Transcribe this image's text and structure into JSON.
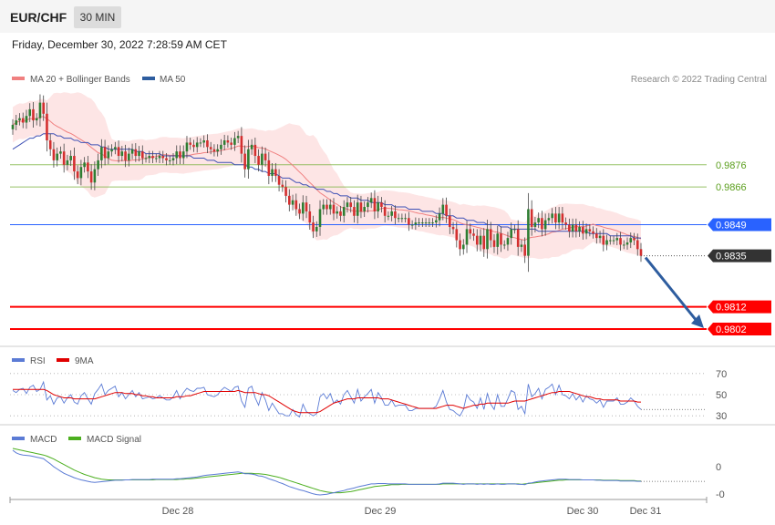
{
  "header": {
    "symbol": "EUR/CHF",
    "timeframe": "30 MIN",
    "datetime": "Friday, December 30, 2022 7:28:59 AM CET"
  },
  "credit": "Research © 2022 Trading Central",
  "colors": {
    "bullish": "#2e7d32",
    "bearish": "#d32f2f",
    "resistance": "#7cb342",
    "pivot": "#2962ff",
    "support": "#ff0000",
    "current": "#333333",
    "ma20": "#f08080",
    "ma50": "#3f51b5",
    "bollinger": "#fde0e0",
    "rsi": "#5b7bd5",
    "rsi_ma": "#e00000",
    "macd": "#5b7bd5",
    "macd_signal": "#4caf1f",
    "arrow": "#2e5d9f"
  },
  "chart_data": [
    {
      "type": "candlestick",
      "panel": "price",
      "legend": [
        "MA 20 + Bollinger Bands",
        "MA 50"
      ],
      "x_tick_labels": [
        "Dec 28",
        "Dec 29",
        "Dec 30",
        "Dec 31"
      ],
      "x_ticks_index": [
        43,
        100,
        157,
        175
      ],
      "ylim": [
        0.9795,
        0.991
      ],
      "levels": [
        {
          "value": 0.9876,
          "label": "0.9876",
          "kind": "resistance"
        },
        {
          "value": 0.9866,
          "label": "0.9866",
          "kind": "resistance"
        },
        {
          "value": 0.9849,
          "label": "0.9849",
          "kind": "pivot"
        },
        {
          "value": 0.9835,
          "label": "0.9835",
          "kind": "current"
        },
        {
          "value": 0.9812,
          "label": "0.9812",
          "kind": "support"
        },
        {
          "value": 0.9802,
          "label": "0.9802",
          "kind": "support"
        }
      ],
      "close": [
        0.9894,
        0.9896,
        0.9897,
        0.9895,
        0.9898,
        0.9901,
        0.9896,
        0.9897,
        0.9904,
        0.9899,
        0.9887,
        0.9883,
        0.9878,
        0.9881,
        0.9882,
        0.9876,
        0.9878,
        0.988,
        0.9873,
        0.987,
        0.9875,
        0.9877,
        0.9873,
        0.9868,
        0.9874,
        0.9878,
        0.9884,
        0.9879,
        0.9882,
        0.9883,
        0.9884,
        0.988,
        0.9882,
        0.9878,
        0.9881,
        0.9883,
        0.988,
        0.9882,
        0.9879,
        0.9879,
        0.988,
        0.9879,
        0.9879,
        0.988,
        0.9879,
        0.9878,
        0.9878,
        0.9879,
        0.9882,
        0.9879,
        0.9882,
        0.9886,
        0.9885,
        0.9884,
        0.9886,
        0.9886,
        0.9887,
        0.9884,
        0.9883,
        0.9882,
        0.9883,
        0.9885,
        0.9887,
        0.9886,
        0.9885,
        0.9888,
        0.9889,
        0.9881,
        0.9874,
        0.9883,
        0.9885,
        0.988,
        0.9876,
        0.9881,
        0.9878,
        0.9871,
        0.9874,
        0.9871,
        0.9867,
        0.9866,
        0.9862,
        0.9858,
        0.986,
        0.9856,
        0.9854,
        0.9859,
        0.9855,
        0.985,
        0.9846,
        0.9848,
        0.9856,
        0.9858,
        0.9856,
        0.9858,
        0.9854,
        0.9855,
        0.9853,
        0.9857,
        0.9859,
        0.9857,
        0.9853,
        0.9859,
        0.9855,
        0.9857,
        0.9859,
        0.9861,
        0.9855,
        0.9859,
        0.9857,
        0.9853,
        0.9853,
        0.9855,
        0.9852,
        0.9852,
        0.9852,
        0.9852,
        0.9849,
        0.9849,
        0.985,
        0.985,
        0.985,
        0.985,
        0.985,
        0.985,
        0.9851,
        0.9854,
        0.9858,
        0.9853,
        0.9848,
        0.9847,
        0.9842,
        0.9838,
        0.984,
        0.9847,
        0.9845,
        0.9844,
        0.984,
        0.9844,
        0.9838,
        0.9847,
        0.9842,
        0.9839,
        0.9845,
        0.984,
        0.984,
        0.9843,
        0.9847,
        0.9847,
        0.9839,
        0.984,
        0.9835,
        0.9856,
        0.9848,
        0.985,
        0.9852,
        0.9847,
        0.9851,
        0.9852,
        0.9854,
        0.985,
        0.9854,
        0.985,
        0.9849,
        0.9846,
        0.9849,
        0.9846,
        0.9848,
        0.9845,
        0.9847,
        0.9846,
        0.9845,
        0.9843,
        0.9844,
        0.984,
        0.9842,
        0.9842,
        0.9842,
        0.9843,
        0.984,
        0.984,
        0.9841,
        0.9843,
        0.9842,
        0.9838,
        0.9835
      ],
      "ma50": [
        0.9883,
        0.9884,
        0.9885,
        0.9886,
        0.9887,
        0.9888,
        0.9888,
        0.9889,
        0.9889,
        0.989,
        0.989,
        0.989,
        0.989,
        0.9889,
        0.9889,
        0.9888,
        0.9888,
        0.9888,
        0.9887,
        0.9887,
        0.9886,
        0.9886,
        0.9886,
        0.9885,
        0.9885,
        0.9885,
        0.9884,
        0.9884,
        0.9883,
        0.9883,
        0.9883,
        0.9883,
        0.9883,
        0.9883,
        0.9883,
        0.9883,
        0.9882,
        0.9882,
        0.9882,
        0.9881,
        0.9881,
        0.9881,
        0.9881,
        0.9881,
        0.988,
        0.988,
        0.988,
        0.988,
        0.988,
        0.988,
        0.988,
        0.988,
        0.988,
        0.9879,
        0.9879,
        0.9879,
        0.9879,
        0.9878,
        0.9878,
        0.9878,
        0.9877,
        0.9877,
        0.9877,
        0.9877,
        0.9877,
        0.9876,
        0.9876,
        0.9876,
        0.9876,
        0.9875,
        0.9875,
        0.9874,
        0.9874,
        0.9873,
        0.9873,
        0.9872,
        0.9872,
        0.9872,
        0.9871,
        0.987,
        0.987,
        0.987,
        0.9869,
        0.9868,
        0.9868,
        0.9867,
        0.9867,
        0.9866,
        0.9866,
        0.9865,
        0.9865,
        0.9865,
        0.9864,
        0.9864,
        0.9863,
        0.9863,
        0.9862,
        0.9862,
        0.9862,
        0.9861,
        0.9861,
        0.9861,
        0.986,
        0.986,
        0.986,
        0.9859,
        0.9859,
        0.9859,
        0.9859,
        0.9858,
        0.9858,
        0.9858,
        0.9857,
        0.9857,
        0.9857,
        0.9857,
        0.9856,
        0.9856,
        0.9856,
        0.9856,
        0.9855,
        0.9855,
        0.9855,
        0.9855,
        0.9854,
        0.9854,
        0.9854,
        0.9853,
        0.9853,
        0.9853,
        0.9852,
        0.9852,
        0.9852,
        0.9851,
        0.9851,
        0.9851,
        0.985,
        0.985,
        0.985,
        0.9849,
        0.9849,
        0.9849,
        0.9849,
        0.9848,
        0.9848,
        0.9848,
        0.9847,
        0.9847,
        0.9847,
        0.9847,
        0.9847,
        0.9847,
        0.9847,
        0.9847,
        0.9846,
        0.9846,
        0.9846,
        0.9846,
        0.9846,
        0.9846,
        0.9846,
        0.9846,
        0.9846,
        0.9846,
        0.9846,
        0.9846,
        0.9846,
        0.9846,
        0.9846,
        0.9845,
        0.9845,
        0.9845,
        0.9845,
        0.9845,
        0.9845,
        0.9844,
        0.9844,
        0.9844,
        0.9844,
        0.9844,
        0.9844,
        0.9844,
        0.9843,
        0.9843,
        0.9843
      ]
    },
    {
      "type": "line",
      "panel": "rsi",
      "legend": [
        "RSI",
        "9MA"
      ],
      "y_ticks": [
        70,
        50,
        30
      ],
      "ylim": [
        25,
        75
      ],
      "rsi": [
        54,
        52,
        55,
        56,
        51,
        57,
        59,
        53,
        55,
        62,
        45,
        49,
        41,
        47,
        48,
        42,
        47,
        50,
        43,
        41,
        49,
        52,
        46,
        41,
        51,
        55,
        60,
        50,
        54,
        56,
        58,
        48,
        52,
        46,
        50,
        54,
        48,
        52,
        46,
        47,
        48,
        46,
        47,
        49,
        47,
        45,
        45,
        48,
        54,
        46,
        52,
        56,
        54,
        53,
        56,
        56,
        57,
        50,
        49,
        48,
        50,
        54,
        57,
        55,
        53,
        57,
        58,
        44,
        38,
        56,
        58,
        47,
        40,
        52,
        45,
        35,
        42,
        37,
        32,
        32,
        30,
        30,
        36,
        31,
        29,
        41,
        34,
        32,
        30,
        32,
        48,
        51,
        46,
        51,
        42,
        45,
        41,
        50,
        54,
        48,
        42,
        55,
        44,
        48,
        51,
        55,
        42,
        52,
        47,
        40,
        40,
        45,
        39,
        40,
        40,
        40,
        35,
        35,
        37,
        37,
        37,
        37,
        37,
        37,
        39,
        46,
        54,
        43,
        36,
        35,
        32,
        30,
        36,
        50,
        45,
        43,
        37,
        47,
        36,
        51,
        41,
        36,
        50,
        39,
        39,
        46,
        54,
        52,
        36,
        39,
        32,
        60,
        48,
        51,
        56,
        46,
        55,
        57,
        60,
        50,
        59,
        50,
        49,
        46,
        51,
        45,
        49,
        43,
        49,
        46,
        45,
        42,
        45,
        38,
        44,
        44,
        44,
        47,
        41,
        41,
        43,
        47,
        44,
        39,
        36
      ],
      "rsi_ma": [
        55,
        55,
        55,
        55,
        55,
        55,
        55,
        55,
        55,
        55,
        54,
        52,
        50,
        49,
        48,
        47,
        47,
        47,
        46,
        46,
        46,
        46,
        46,
        46,
        46,
        47,
        48,
        49,
        50,
        51,
        52,
        52,
        52,
        51,
        51,
        51,
        50,
        50,
        49,
        49,
        48,
        48,
        47,
        47,
        47,
        47,
        47,
        47,
        48,
        48,
        48,
        49,
        49,
        50,
        51,
        52,
        53,
        53,
        53,
        53,
        53,
        53,
        53,
        53,
        53,
        53,
        54,
        53,
        52,
        52,
        52,
        52,
        51,
        50,
        50,
        49,
        47,
        45,
        43,
        41,
        39,
        37,
        35,
        34,
        33,
        33,
        33,
        33,
        33,
        33,
        34,
        36,
        38,
        40,
        42,
        43,
        44,
        45,
        46,
        46,
        46,
        47,
        47,
        47,
        47,
        47,
        47,
        47,
        46,
        46,
        46,
        45,
        44,
        43,
        42,
        41,
        40,
        39,
        38,
        37,
        37,
        37,
        37,
        37,
        37,
        38,
        39,
        40,
        40,
        40,
        39,
        38,
        37,
        38,
        39,
        40,
        40,
        41,
        41,
        42,
        42,
        42,
        42,
        42,
        42,
        42,
        43,
        44,
        44,
        44,
        44,
        45,
        46,
        47,
        48,
        49,
        50,
        51,
        52,
        52,
        53,
        53,
        53,
        53,
        52,
        51,
        50,
        49,
        48,
        48,
        47,
        46,
        46,
        45,
        45,
        45,
        45,
        45,
        44,
        44,
        44,
        44,
        44,
        43,
        43
      ]
    },
    {
      "type": "line",
      "panel": "macd",
      "legend": [
        "MACD",
        "MACD Signal"
      ],
      "y_tick_labels": [
        "0",
        "-0"
      ],
      "macd": [
        0.85,
        0.78,
        0.74,
        0.72,
        0.71,
        0.7,
        0.68,
        0.66,
        0.64,
        0.62,
        0.55,
        0.48,
        0.4,
        0.34,
        0.28,
        0.22,
        0.18,
        0.14,
        0.1,
        0.07,
        0.04,
        0.02,
        0.0,
        -0.02,
        -0.03,
        -0.02,
        -0.01,
        0.0,
        0.01,
        0.02,
        0.03,
        0.03,
        0.03,
        0.04,
        0.04,
        0.05,
        0.05,
        0.05,
        0.05,
        0.05,
        0.05,
        0.06,
        0.06,
        0.06,
        0.06,
        0.06,
        0.06,
        0.06,
        0.07,
        0.07,
        0.08,
        0.09,
        0.1,
        0.11,
        0.12,
        0.14,
        0.16,
        0.17,
        0.18,
        0.19,
        0.2,
        0.21,
        0.22,
        0.23,
        0.24,
        0.25,
        0.26,
        0.24,
        0.21,
        0.21,
        0.2,
        0.18,
        0.15,
        0.14,
        0.11,
        0.07,
        0.04,
        0.01,
        -0.03,
        -0.06,
        -0.1,
        -0.14,
        -0.17,
        -0.2,
        -0.23,
        -0.25,
        -0.28,
        -0.31,
        -0.34,
        -0.36,
        -0.37,
        -0.36,
        -0.35,
        -0.33,
        -0.31,
        -0.29,
        -0.27,
        -0.25,
        -0.22,
        -0.2,
        -0.18,
        -0.15,
        -0.13,
        -0.11,
        -0.09,
        -0.07,
        -0.07,
        -0.06,
        -0.06,
        -0.06,
        -0.07,
        -0.07,
        -0.07,
        -0.07,
        -0.07,
        -0.07,
        -0.08,
        -0.08,
        -0.08,
        -0.08,
        -0.08,
        -0.08,
        -0.08,
        -0.08,
        -0.08,
        -0.07,
        -0.05,
        -0.05,
        -0.05,
        -0.05,
        -0.06,
        -0.07,
        -0.08,
        -0.07,
        -0.07,
        -0.07,
        -0.08,
        -0.07,
        -0.08,
        -0.07,
        -0.08,
        -0.08,
        -0.07,
        -0.08,
        -0.08,
        -0.07,
        -0.07,
        -0.07,
        -0.08,
        -0.08,
        -0.09,
        -0.05,
        -0.04,
        -0.02,
        0.0,
        0.01,
        0.02,
        0.03,
        0.04,
        0.05,
        0.06,
        0.06,
        0.06,
        0.05,
        0.05,
        0.05,
        0.05,
        0.04,
        0.04,
        0.04,
        0.04,
        0.03,
        0.03,
        0.02,
        0.02,
        0.02,
        0.02,
        0.02,
        0.01,
        0.01,
        0.01,
        0.01,
        0.01,
        0.0,
        0.0
      ],
      "signal": [
        0.9,
        0.88,
        0.86,
        0.84,
        0.82,
        0.8,
        0.78,
        0.76,
        0.74,
        0.72,
        0.69,
        0.65,
        0.61,
        0.56,
        0.51,
        0.46,
        0.41,
        0.36,
        0.31,
        0.27,
        0.23,
        0.19,
        0.16,
        0.13,
        0.1,
        0.08,
        0.06,
        0.05,
        0.04,
        0.04,
        0.04,
        0.04,
        0.04,
        0.04,
        0.04,
        0.04,
        0.04,
        0.04,
        0.04,
        0.04,
        0.04,
        0.04,
        0.05,
        0.05,
        0.05,
        0.05,
        0.05,
        0.05,
        0.05,
        0.06,
        0.06,
        0.07,
        0.07,
        0.08,
        0.09,
        0.1,
        0.11,
        0.12,
        0.13,
        0.14,
        0.15,
        0.16,
        0.17,
        0.18,
        0.19,
        0.2,
        0.21,
        0.22,
        0.22,
        0.22,
        0.22,
        0.21,
        0.21,
        0.2,
        0.19,
        0.17,
        0.15,
        0.13,
        0.11,
        0.08,
        0.05,
        0.02,
        -0.01,
        -0.04,
        -0.07,
        -0.1,
        -0.13,
        -0.16,
        -0.19,
        -0.22,
        -0.25,
        -0.27,
        -0.29,
        -0.3,
        -0.31,
        -0.31,
        -0.31,
        -0.3,
        -0.29,
        -0.28,
        -0.26,
        -0.24,
        -0.22,
        -0.2,
        -0.18,
        -0.16,
        -0.14,
        -0.13,
        -0.12,
        -0.11,
        -0.1,
        -0.09,
        -0.09,
        -0.09,
        -0.08,
        -0.08,
        -0.08,
        -0.08,
        -0.08,
        -0.08,
        -0.08,
        -0.08,
        -0.08,
        -0.08,
        -0.08,
        -0.08,
        -0.07,
        -0.07,
        -0.07,
        -0.07,
        -0.07,
        -0.07,
        -0.07,
        -0.07,
        -0.07,
        -0.07,
        -0.07,
        -0.07,
        -0.07,
        -0.07,
        -0.07,
        -0.07,
        -0.07,
        -0.07,
        -0.07,
        -0.07,
        -0.07,
        -0.07,
        -0.07,
        -0.08,
        -0.07,
        -0.06,
        -0.05,
        -0.04,
        -0.03,
        -0.02,
        -0.01,
        0.0,
        0.01,
        0.02,
        0.03,
        0.03,
        0.04,
        0.04,
        0.04,
        0.04,
        0.04,
        0.04,
        0.04,
        0.04,
        0.04,
        0.04,
        0.04,
        0.03,
        0.03,
        0.03,
        0.03,
        0.03,
        0.02,
        0.02,
        0.02,
        0.02,
        0.02,
        0.01,
        0.01
      ]
    }
  ]
}
